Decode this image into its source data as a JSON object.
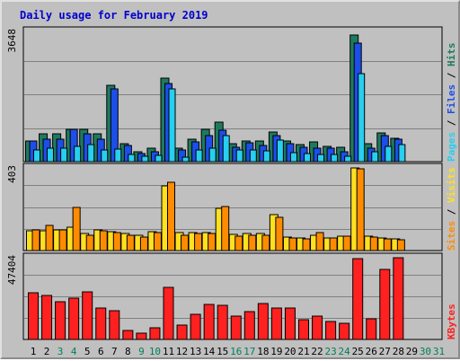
{
  "chart_data": {
    "type": "bar",
    "title": "Daily usage for February 2019",
    "x": [
      "1",
      "2",
      "3",
      "4",
      "5",
      "6",
      "7",
      "8",
      "9",
      "10",
      "11",
      "12",
      "13",
      "14",
      "15",
      "16",
      "17",
      "18",
      "19",
      "20",
      "21",
      "22",
      "23",
      "24",
      "25",
      "26",
      "27",
      "28",
      "29",
      "30",
      "31"
    ],
    "x_weekend": [
      false,
      false,
      true,
      true,
      false,
      false,
      false,
      false,
      true,
      true,
      false,
      false,
      false,
      false,
      false,
      true,
      true,
      false,
      false,
      false,
      false,
      false,
      true,
      true,
      false,
      false,
      false,
      false,
      false,
      true,
      true
    ],
    "panels": [
      {
        "max_label": "3648",
        "ymax": 3648,
        "series": [
          {
            "name": "Hits",
            "color": "#1e7a5e",
            "values": [
              580,
              770,
              770,
              900,
              900,
              770,
              2100,
              500,
              280,
              380,
              2300,
              360,
              620,
              900,
              1080,
              500,
              580,
              580,
              830,
              560,
              470,
              550,
              430,
              400,
              3500,
              500,
              790,
              640
            ]
          },
          {
            "name": "Files",
            "color": "#1c4ee8",
            "values": [
              580,
              620,
              620,
              900,
              770,
              620,
              2000,
              440,
              230,
              280,
              2150,
              330,
              540,
              720,
              880,
              390,
              510,
              440,
              720,
              500,
              400,
              370,
              360,
              270,
              3280,
              380,
              720,
              620
            ]
          },
          {
            "name": "Pages",
            "color": "#27cff0",
            "values": [
              320,
              380,
              380,
              420,
              470,
              320,
              350,
              210,
              140,
              180,
              2000,
              130,
              330,
              360,
              710,
              330,
              320,
              290,
              600,
              250,
              220,
              190,
              210,
              160,
              2440,
              270,
              430,
              460
            ]
          }
        ]
      },
      {
        "max_label": "403",
        "ymax": 403,
        "series": [
          {
            "name": "Visits",
            "color": "#ffe020",
            "values": [
              95,
              95,
              100,
              110,
              80,
              100,
              90,
              80,
              72,
              90,
              310,
              85,
              85,
              85,
              200,
              78,
              80,
              80,
              170,
              65,
              60,
              72,
              62,
              70,
              395,
              70,
              58,
              55
            ]
          },
          {
            "name": "Sites",
            "color": "#ff8c00",
            "values": [
              100,
              120,
              100,
              205,
              75,
              95,
              85,
              75,
              65,
              85,
              325,
              75,
              80,
              80,
              210,
              70,
              75,
              75,
              160,
              60,
              55,
              85,
              58,
              68,
              390,
              65,
              55,
              52
            ]
          }
        ]
      },
      {
        "max_label": "47404",
        "ymax": 47404,
        "series": [
          {
            "name": "KBytes",
            "color": "#ff2020",
            "values": [
              26500,
              24800,
              21500,
              23400,
              27000,
              17700,
              16500,
              5000,
              3500,
              6500,
              29500,
              8000,
              14500,
              20000,
              19500,
              13000,
              16000,
              20500,
              18000,
              18000,
              11000,
              13000,
              10000,
              9000,
              45800,
              11800,
              39800,
              46500
            ]
          }
        ]
      }
    ],
    "side_labels": [
      {
        "parts": [
          {
            "text": "Pages",
            "color": "#27cff0"
          },
          {
            "text": " / ",
            "color": "#000000"
          },
          {
            "text": "Files",
            "color": "#1c4ee8"
          },
          {
            "text": " / ",
            "color": "#000000"
          },
          {
            "text": "Hits",
            "color": "#1e7a5e"
          }
        ]
      },
      {
        "parts": [
          {
            "text": "Sites",
            "color": "#ff8c00"
          },
          {
            "text": " / ",
            "color": "#000000"
          },
          {
            "text": "Visits",
            "color": "#ffe020"
          }
        ]
      },
      {
        "parts": [
          {
            "text": "KBytes",
            "color": "#ff2020"
          }
        ]
      }
    ],
    "grid": true,
    "colors": {
      "frame": "#c0c0c0",
      "plot_bg": "#c0c0c0",
      "grid": "#808080",
      "title": "#0000cc",
      "weekday_label": "#000000",
      "weekend_label": "#00805a"
    }
  }
}
